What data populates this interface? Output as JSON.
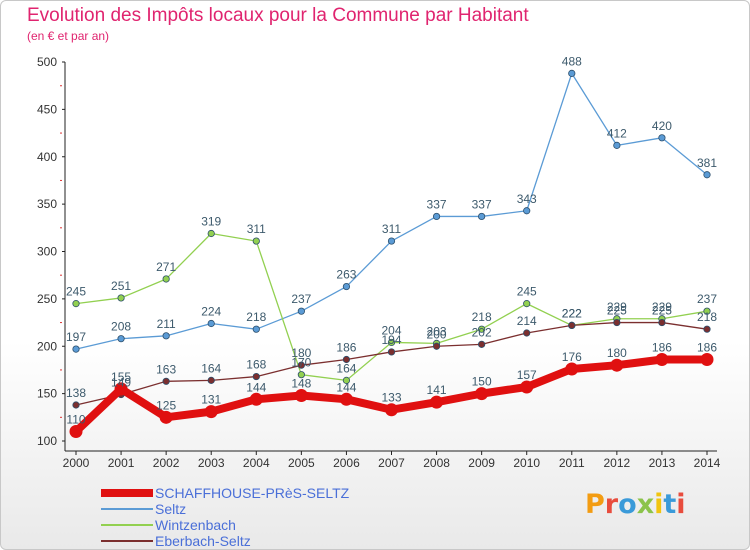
{
  "title": "Evolution des Impôts locaux pour la Commune par Habitant",
  "subtitle": "(en € et par an)",
  "logo": {
    "text": "Proxiti",
    "colors": [
      "#f39c12",
      "#e84c3d",
      "#3a9ad9",
      "#8bc34a",
      "#f1c40f",
      "#3a9ad9",
      "#e84c3d"
    ]
  },
  "chart_data": {
    "type": "line",
    "title": "Evolution des Impôts locaux pour la Commune par Habitant",
    "subtitle": "(en € et par an)",
    "xlabel": "",
    "ylabel": "",
    "ylim": [
      100,
      500
    ],
    "yticks": [
      100,
      150,
      200,
      250,
      300,
      350,
      400,
      450,
      500
    ],
    "grid": false,
    "legend_position": "bottom-left",
    "categories": [
      "2000",
      "2001",
      "2002",
      "2003",
      "2004",
      "2005",
      "2006",
      "2007",
      "2008",
      "2009",
      "2010",
      "2011",
      "2012",
      "2013",
      "2014"
    ],
    "series": [
      {
        "name": "SCHAFFHOUSE-PRèS-SELTZ",
        "color": "#e01010",
        "values": [
          110,
          155,
          125,
          131,
          144,
          148,
          144,
          133,
          141,
          150,
          157,
          176,
          180,
          186,
          186
        ]
      },
      {
        "name": "Seltz",
        "color": "#5b9bd5",
        "values": [
          197,
          208,
          211,
          224,
          218,
          237,
          263,
          311,
          337,
          337,
          343,
          488,
          412,
          420,
          381
        ]
      },
      {
        "name": "Wintzenbach",
        "color": "#92d050",
        "values": [
          245,
          251,
          271,
          319,
          311,
          170,
          164,
          204,
          203,
          218,
          245,
          222,
          229,
          229,
          237
        ]
      },
      {
        "name": "Eberbach-Seltz",
        "color": "#7b2f2f",
        "values": [
          138,
          149,
          163,
          164,
          168,
          180,
          186,
          194,
          200,
          202,
          214,
          222,
          225,
          225,
          218
        ]
      }
    ]
  }
}
